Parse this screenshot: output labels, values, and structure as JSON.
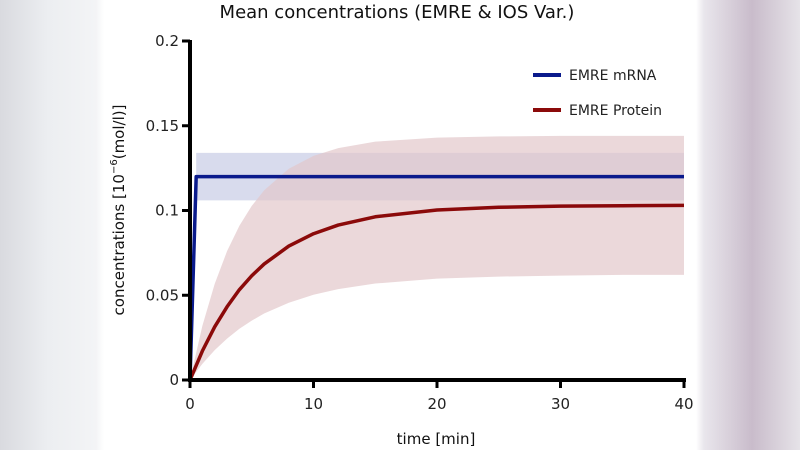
{
  "chart_data": {
    "type": "line",
    "title": "Mean concentrations (EMRE & IOS Var.)",
    "xlabel": "time [min]",
    "ylabel_main": "concentrations [10",
    "ylabel_exp": "−6",
    "ylabel_tail": "(mol/l)]",
    "xlim": [
      0,
      40
    ],
    "ylim": [
      0,
      0.2
    ],
    "xticks": [
      0,
      10,
      20,
      30,
      40
    ],
    "xtick_labels": [
      "0",
      "10",
      "20",
      "30",
      "40"
    ],
    "yticks": [
      0,
      0.05,
      0.1,
      0.15,
      0.2
    ],
    "ytick_labels": [
      "0",
      "0.05",
      "0.1",
      "0.15",
      "0.2"
    ],
    "legend_position": "top-right",
    "grid": false,
    "series": [
      {
        "name": "EMRE mRNA",
        "color": "#0a1a8c",
        "band_color": "#c8cce6",
        "x": [
          0,
          0.5,
          40
        ],
        "y": [
          0,
          0.12,
          0.12
        ],
        "band_x": [
          0.5,
          40
        ],
        "band_upper": [
          0.134,
          0.134
        ],
        "band_lower": [
          0.106,
          0.106
        ]
      },
      {
        "name": "EMRE Protein",
        "color": "#8b0a0a",
        "band_color": "#e2c8cb",
        "x": [
          0,
          1,
          2,
          3,
          4,
          5,
          6,
          8,
          10,
          12,
          15,
          20,
          25,
          30,
          35,
          40
        ],
        "y": [
          0,
          0.0171,
          0.0314,
          0.0432,
          0.0533,
          0.0615,
          0.0684,
          0.079,
          0.0863,
          0.0914,
          0.0963,
          0.1003,
          0.1019,
          0.1026,
          0.1028,
          0.103
        ],
        "band_x": [
          0,
          1,
          2,
          3,
          4,
          5,
          6,
          8,
          10,
          12,
          15,
          20,
          25,
          30,
          35,
          40
        ],
        "band_upper": [
          0,
          0.0319,
          0.0567,
          0.076,
          0.091,
          0.1027,
          0.1119,
          0.1246,
          0.1322,
          0.1368,
          0.1406,
          0.143,
          0.1437,
          0.144,
          0.144,
          0.144
        ],
        "band_lower": [
          0,
          0.0095,
          0.0176,
          0.0244,
          0.0302,
          0.035,
          0.0392,
          0.0456,
          0.0503,
          0.0536,
          0.0569,
          0.0598,
          0.061,
          0.0616,
          0.062,
          0.062
        ]
      }
    ]
  }
}
